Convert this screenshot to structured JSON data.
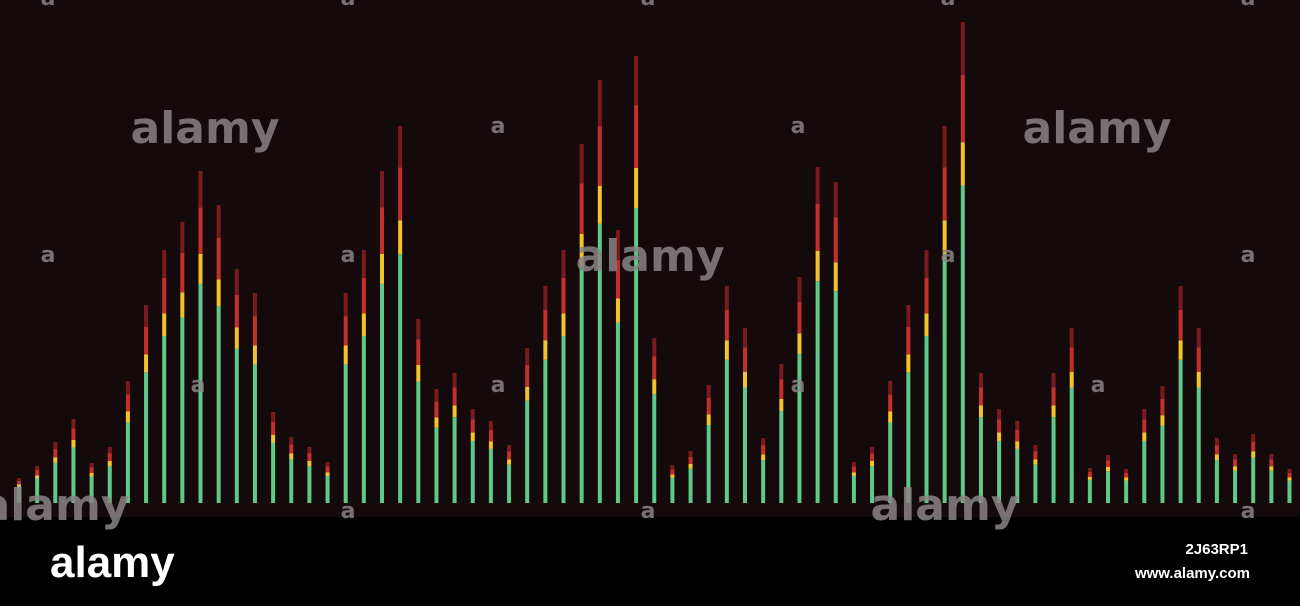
{
  "watermark": "alamy",
  "watermark_small": "a",
  "footer": {
    "logo": "alamy",
    "id": "2J63RP1",
    "url": "www.alamy.com"
  }
}
